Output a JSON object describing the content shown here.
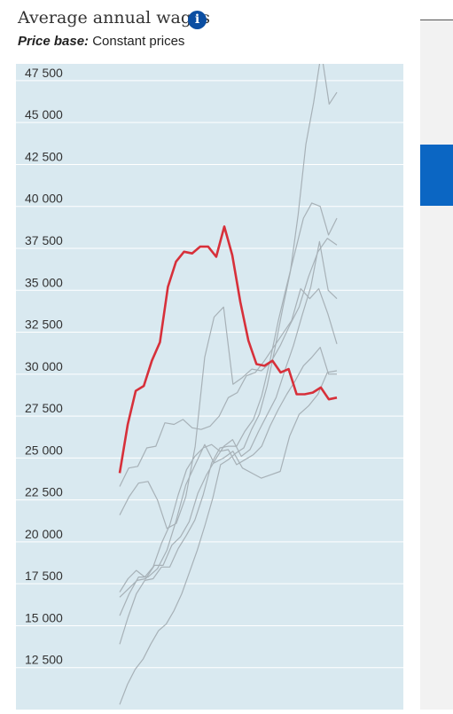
{
  "header": {
    "title": "Average annual wages",
    "info_icon": "info-icon",
    "subtitle_label": "Price base:",
    "subtitle_value": "Constant prices"
  },
  "colors": {
    "highlight": "#d7303a",
    "others": "#a7b1b7",
    "plot_bg": "#d9e9f0",
    "accent": "#0b4ea2"
  },
  "chart_data": {
    "type": "line",
    "title": "Average annual wages",
    "subtitle": "Price base: Constant prices",
    "xlabel": "",
    "ylabel": "",
    "ylim": [
      10000,
      48500
    ],
    "yticks": [
      12500,
      15000,
      17500,
      20000,
      22500,
      25000,
      27500,
      30000,
      32500,
      35000,
      37500,
      40000,
      42500,
      45000,
      47500
    ],
    "ytick_labels": [
      "12 500",
      "15 000",
      "17 500",
      "20 000",
      "22 500",
      "25 000",
      "27 500",
      "30 000",
      "32 500",
      "35 000",
      "37 500",
      "40 000",
      "42 500",
      "45 000",
      "47 500"
    ],
    "grid": true,
    "legend": "none",
    "highlight_series": "highlighted",
    "series": [
      {
        "id": "highlighted",
        "highlight": true,
        "values": [
          24100,
          27000,
          29000,
          29300,
          30800,
          31900,
          35200,
          36700,
          37300,
          37200,
          37600,
          37600,
          37000,
          38800,
          37100,
          34300,
          32000,
          30600,
          30500,
          30800,
          30100,
          30300,
          28800,
          28800,
          28900,
          29200,
          28500,
          28600
        ]
      },
      {
        "id": "s2",
        "highlight": false,
        "values": [
          10300,
          11500,
          12400,
          13000,
          13900,
          14700,
          15100,
          15900,
          16900,
          18200,
          19500,
          21000,
          22600,
          24600,
          24900,
          25300,
          25600,
          26700,
          27600,
          29300,
          31500,
          33900,
          36100,
          39500,
          43700,
          46200,
          49200,
          46100,
          46800
        ]
      },
      {
        "id": "s3",
        "highlight": false,
        "values": [
          13900,
          15500,
          16900,
          17700,
          17800,
          18500,
          18500,
          19600,
          20400,
          21300,
          22800,
          24700,
          25600,
          25700,
          25700,
          26600,
          27300,
          28700,
          30800,
          33200,
          35300,
          37300,
          39300,
          40200,
          40000,
          38300,
          39300
        ]
      },
      {
        "id": "s4",
        "highlight": false,
        "values": [
          16700,
          17200,
          17700,
          17800,
          18600,
          18600,
          19800,
          20300,
          21200,
          22900,
          24000,
          24900,
          25700,
          26100,
          25100,
          25500,
          26600,
          27600,
          28600,
          30200,
          31700,
          33500,
          35200,
          37900,
          35000,
          34500
        ]
      },
      {
        "id": "s5",
        "highlight": false,
        "values": [
          17000,
          17800,
          18300,
          17900,
          18500,
          19900,
          21000,
          22800,
          24300,
          25100,
          25600,
          25800,
          25400,
          25500,
          24600,
          24900,
          25200,
          25700,
          26900,
          27900,
          28800,
          29600,
          30500,
          31000,
          31600,
          30000,
          30000
        ]
      },
      {
        "id": "s6",
        "highlight": false,
        "values": [
          15600,
          16900,
          17900,
          17900,
          18400,
          19500,
          21300,
          23400,
          24600,
          25800,
          24700,
          25000,
          25400,
          24400,
          24100,
          23800,
          24000,
          24200,
          26300,
          27600,
          28100,
          28800,
          30100,
          30200
        ]
      },
      {
        "id": "s7",
        "highlight": false,
        "values": [
          21600,
          22700,
          23500,
          23600,
          22500,
          20800,
          21100,
          22700,
          25700,
          31000,
          33400,
          34000,
          29400,
          29800,
          30300,
          30200,
          30700,
          31700,
          32900,
          34000,
          35800,
          37300,
          38100,
          37700
        ]
      },
      {
        "id": "s8",
        "highlight": false,
        "values": [
          23300,
          24400,
          24500,
          25600,
          25700,
          27100,
          27000,
          27300,
          26800,
          26700,
          26900,
          27500,
          28600,
          28900,
          29900,
          30100,
          30800,
          31600,
          32400,
          33200,
          35100,
          34500,
          35100,
          33600,
          31800
        ]
      }
    ]
  }
}
